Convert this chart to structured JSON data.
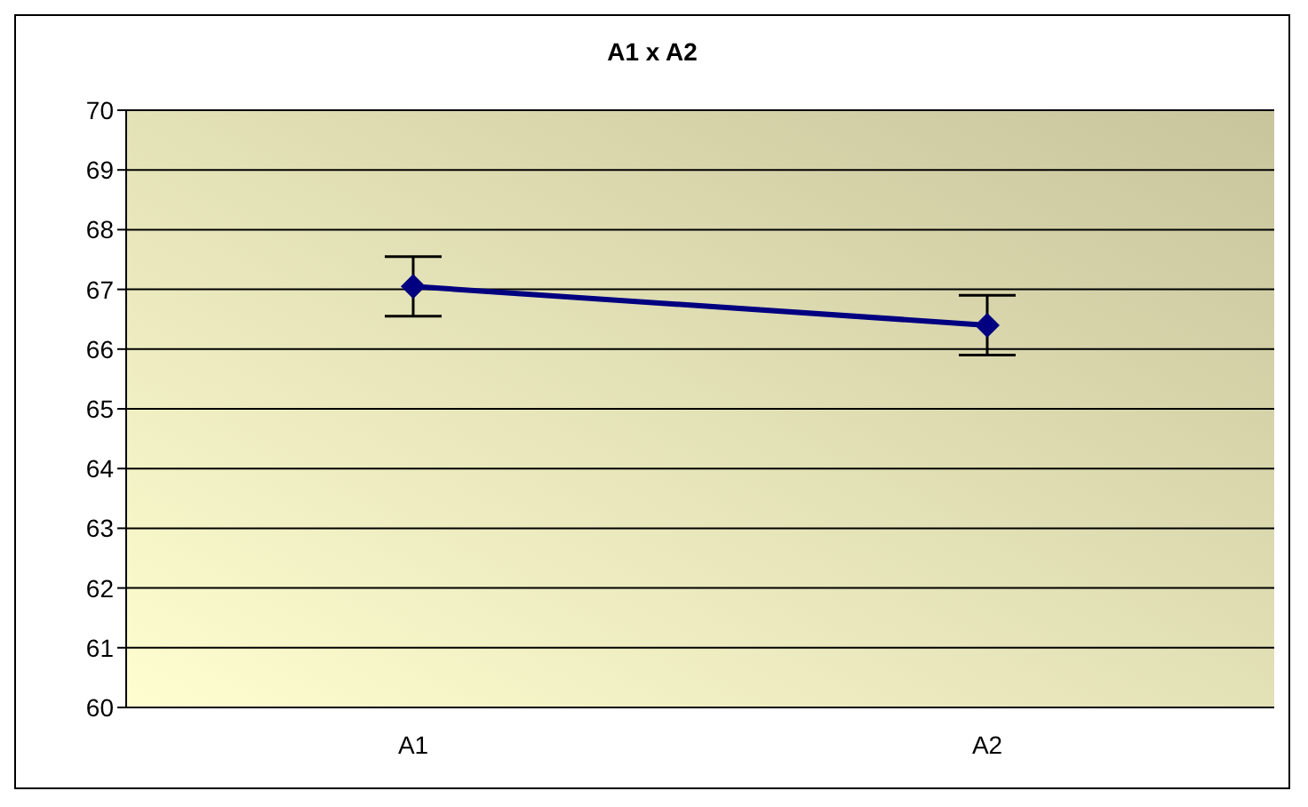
{
  "chart_data": {
    "type": "line",
    "title": "A1 x A2",
    "categories": [
      "A1",
      "A2"
    ],
    "series": [
      {
        "color": "#000080",
        "values": [
          67.05,
          66.4
        ],
        "errors": [
          0.5,
          0.5
        ]
      }
    ],
    "ylim": [
      60,
      70
    ],
    "yticks": [
      60,
      61,
      62,
      63,
      64,
      65,
      66,
      67,
      68,
      69,
      70
    ],
    "grid": "y",
    "marker": "diamond"
  }
}
